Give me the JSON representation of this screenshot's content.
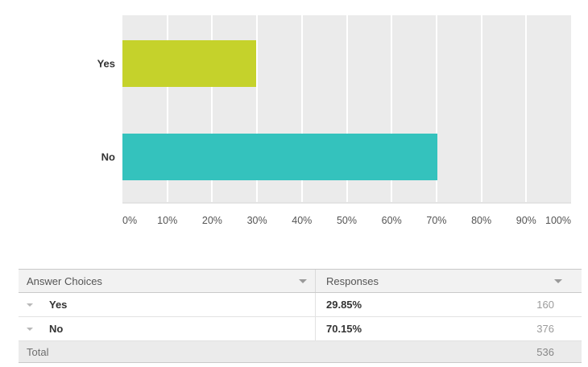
{
  "chart_data": {
    "type": "bar",
    "orientation": "horizontal",
    "title": "",
    "categories": [
      "Yes",
      "No"
    ],
    "values": [
      29.85,
      70.15
    ],
    "bar_colors": [
      "#c5d22b",
      "#34c2bd"
    ],
    "x_ticks": [
      "0%",
      "10%",
      "20%",
      "30%",
      "40%",
      "50%",
      "60%",
      "70%",
      "80%",
      "90%",
      "100%"
    ],
    "xlim": [
      0,
      100
    ],
    "plot_background": "#ebebeb",
    "gridline_color": "#ffffff",
    "grid": "vertical"
  },
  "table": {
    "columns": [
      {
        "label": "Answer Choices"
      },
      {
        "label": "Responses"
      }
    ],
    "rows": [
      {
        "choice": "Yes",
        "percent": "29.85%",
        "count": "160"
      },
      {
        "choice": "No",
        "percent": "70.15%",
        "count": "376"
      }
    ],
    "total": {
      "label": "Total",
      "count": "536"
    }
  }
}
